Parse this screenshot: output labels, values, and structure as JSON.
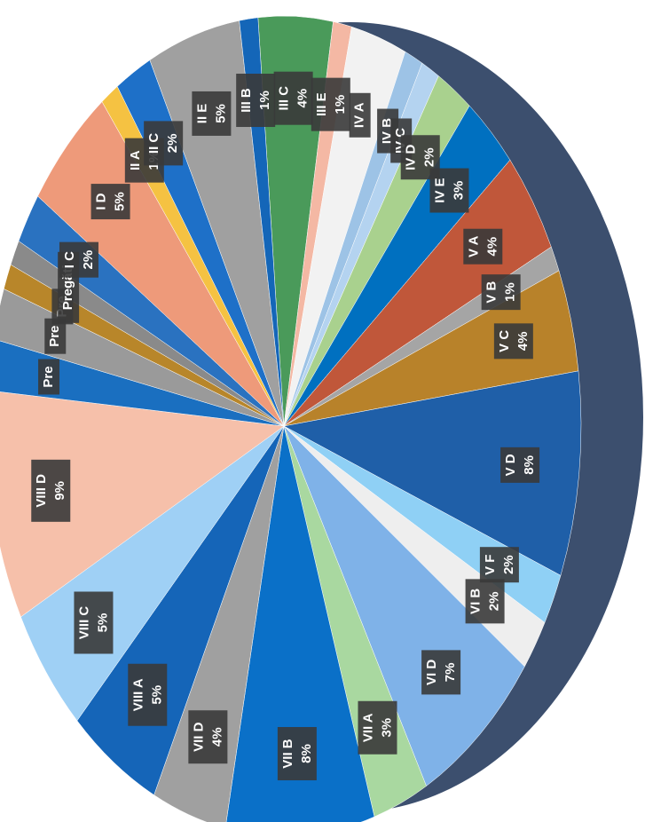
{
  "chart_data": {
    "type": "pie",
    "categories": [
      "III C",
      "III E",
      "IV A",
      "IV B",
      "IV C",
      "IV D",
      "IV E",
      "V A",
      "V B",
      "V C",
      "V D",
      "V F",
      "VI B",
      "VI D",
      "VII A",
      "VII B",
      "VII D",
      "VIII A",
      "VIII C",
      "VIII D",
      "Pre",
      "Pre",
      "Pre",
      "Pregăti",
      "I C",
      "I D",
      "II A",
      "II C",
      "II E",
      "III B"
    ],
    "values": [
      4,
      1,
      3,
      1,
      1,
      2,
      3,
      4,
      1,
      4,
      8,
      2,
      2,
      7,
      3,
      8,
      4,
      5,
      5,
      9,
      2,
      2,
      1,
      1,
      2,
      5,
      1,
      2,
      5,
      1
    ],
    "value_labels": [
      "4%",
      "1%",
      null,
      null,
      null,
      "2%",
      "3%",
      "4%",
      "1%",
      "4%",
      "8%",
      "2%",
      "2%",
      "7%",
      "3%",
      "8%",
      "4%",
      "5%",
      "5%",
      "9%",
      null,
      null,
      null,
      null,
      "2%",
      "5%",
      "1%",
      "2%",
      "5%",
      "1%"
    ],
    "colors": [
      "#4a9a5a",
      "#f4b8a4",
      "#f2f2f2",
      "#9dc3e6",
      "#b4d3f0",
      "#a9d18e",
      "#0070c0",
      "#c0573a",
      "#a5a5a5",
      "#b8822a",
      "#1f5fa8",
      "#8fd0f5",
      "#eeeeee",
      "#7fb2e8",
      "#a9d8a0",
      "#0a70c8",
      "#a0a0a0",
      "#1565b8",
      "#9fd0f5",
      "#f6c0aa",
      "#1a6fc0",
      "#9a9a9a",
      "#b8862a",
      "#8a8a8a",
      "#2a72c0",
      "#ee9a7a",
      "#f5c242",
      "#1e70c8",
      "#a0a0a0",
      "#1466b8"
    ]
  }
}
